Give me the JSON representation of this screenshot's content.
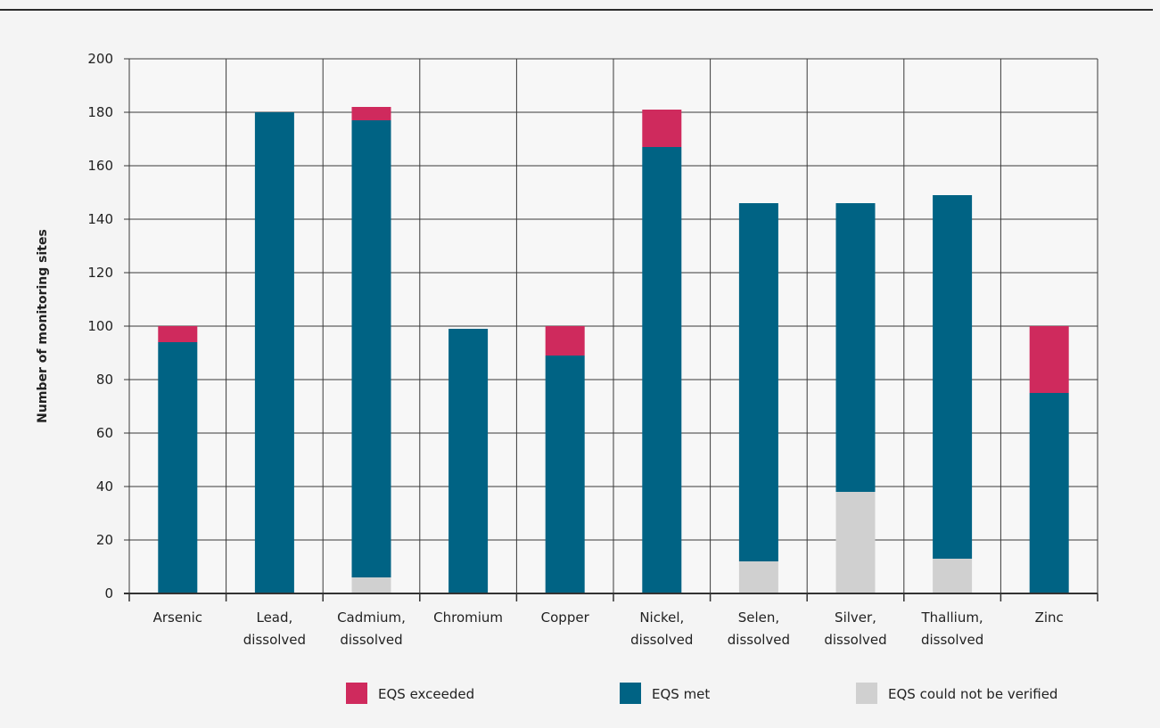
{
  "chart_data": {
    "type": "bar",
    "stacked": true,
    "title": "",
    "xlabel": "",
    "ylabel": "Number of monitoring sites",
    "ylim": [
      0,
      200
    ],
    "yticks": [
      0,
      20,
      40,
      60,
      80,
      100,
      120,
      140,
      160,
      180,
      200
    ],
    "grid": true,
    "legend_position": "bottom",
    "categories": [
      [
        "Arsenic"
      ],
      [
        "Lead,",
        "dissolved"
      ],
      [
        "Cadmium,",
        "dissolved"
      ],
      [
        "Chromium"
      ],
      [
        "Copper"
      ],
      [
        "Nickel,",
        "dissolved"
      ],
      [
        "Selen,",
        "dissolved"
      ],
      [
        "Silver,",
        "dissolved"
      ],
      [
        "Thallium,",
        "dissolved"
      ],
      [
        "Zinc"
      ]
    ],
    "series": [
      {
        "name": "EQS could not be verified",
        "color": "#d0d0d0",
        "values": [
          0,
          0,
          6,
          0,
          0,
          0,
          12,
          38,
          13,
          0
        ]
      },
      {
        "name": "EQS met",
        "color": "#006384",
        "values": [
          94,
          180,
          171,
          99,
          89,
          167,
          134,
          108,
          136,
          75
        ]
      },
      {
        "name": "EQS exceeded",
        "color": "#cf2a5d",
        "values": [
          6,
          0,
          5,
          0,
          11,
          14,
          0,
          0,
          0,
          25
        ]
      }
    ],
    "legend_order": [
      "EQS exceeded",
      "EQS met",
      "EQS could not be verified"
    ]
  }
}
